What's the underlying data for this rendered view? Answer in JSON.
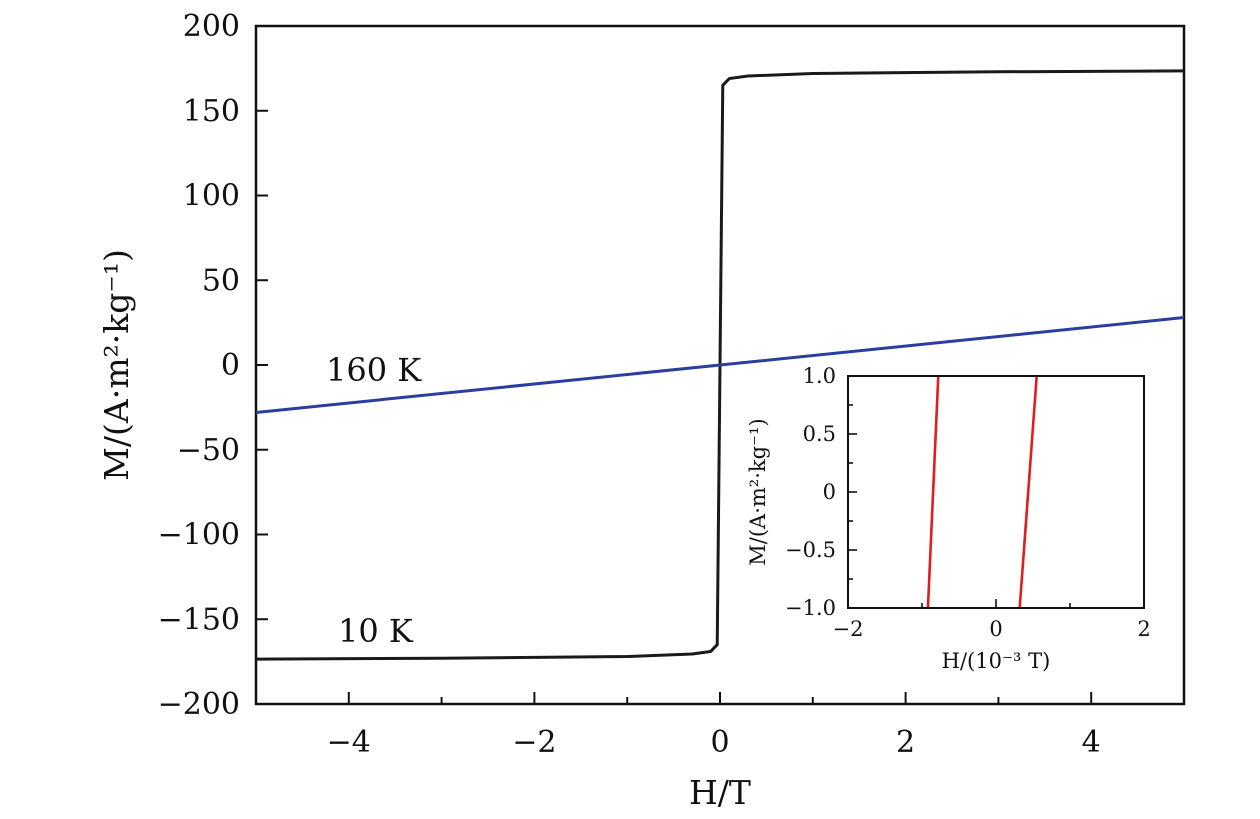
{
  "chart_data": [
    {
      "type": "line",
      "xlabel": "H/T",
      "ylabel": "M/(A·m²·kg⁻¹)",
      "xlim": [
        -5,
        5
      ],
      "ylim": [
        -200,
        200
      ],
      "xticks": [
        -4,
        -2,
        0,
        2,
        4
      ],
      "xtick_labels": [
        "−4",
        "−2",
        "0",
        "2",
        "4"
      ],
      "yticks": [
        200,
        150,
        100,
        50,
        0,
        -50,
        -100,
        -150,
        -200
      ],
      "ytick_labels": [
        "200",
        "150",
        "100",
        "50",
        "0",
        "−50",
        "−100",
        "−150",
        "−200"
      ],
      "grid": false,
      "annotations": [
        {
          "text": "160 K",
          "series": "160 K"
        },
        {
          "text": "10 K",
          "series": "10 K"
        }
      ],
      "series": [
        {
          "name": "10 K",
          "color": "#1a1a1a",
          "x": [
            -5,
            -3,
            -1,
            -0.3,
            -0.1,
            -0.03,
            0,
            0.03,
            0.1,
            0.3,
            1,
            3,
            5
          ],
          "y": [
            -173.5,
            -173,
            -172,
            -170.5,
            -169,
            -165,
            0,
            165,
            169,
            170.5,
            172,
            173,
            173.5
          ]
        },
        {
          "name": "160 K",
          "color": "#2a3ea0",
          "x": [
            -5,
            5
          ],
          "y": [
            -28,
            28
          ]
        }
      ]
    },
    {
      "type": "line",
      "inset": true,
      "xlabel": "H/(10⁻³ T)",
      "ylabel": "M/(A·m²·kg⁻¹)",
      "xlim": [
        -2,
        2
      ],
      "ylim": [
        -1,
        1
      ],
      "xticks": [
        -2,
        0,
        2
      ],
      "xtick_labels": [
        "−2",
        "0",
        "2"
      ],
      "yticks": [
        1,
        0.5,
        0,
        -0.5,
        -1
      ],
      "ytick_labels": [
        "1.0",
        "0.5",
        "0",
        "−0.5",
        "−1.0"
      ],
      "grid": false,
      "series": [
        {
          "color": "#e01e1e",
          "x": [
            -0.92,
            -0.78
          ],
          "y": [
            -1,
            1
          ]
        },
        {
          "color": "#e01e1e",
          "x": [
            0.32,
            0.55
          ],
          "y": [
            -1,
            1
          ]
        }
      ]
    }
  ]
}
